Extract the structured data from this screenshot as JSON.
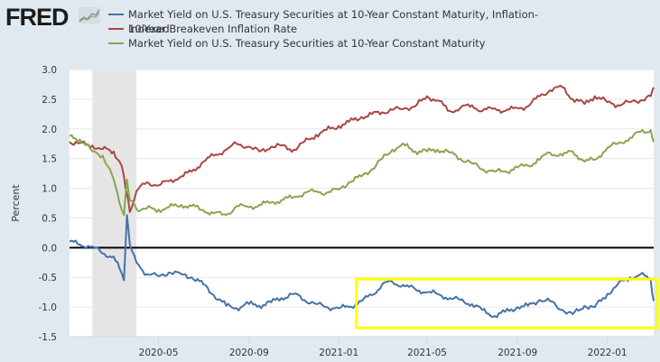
{
  "header": {
    "logo_text": "FRED",
    "logo_icon": "line-chart-icon"
  },
  "legend": [
    {
      "label": "Market Yield on U.S. Treasury Securities at 10-Year Constant Maturity, Inflation-",
      "color": "#4572a7"
    },
    {
      "label": "10-Year Breakeven Inflation Rate",
      "overlap_text": "Indexed",
      "color": "#aa4643"
    },
    {
      "label": "Market Yield on U.S. Treasury Securities at 10-Year Constant Maturity",
      "color": "#89a54e"
    }
  ],
  "chart_data": {
    "type": "line",
    "title": "",
    "xlabel": "",
    "ylabel": "Percent",
    "ylim": [
      -1.5,
      3.0
    ],
    "yticks": [
      "3.0",
      "2.5",
      "2.0",
      "1.5",
      "1.0",
      "0.5",
      "0.0",
      "-0.5",
      "-1.0",
      "-1.5"
    ],
    "ytick_values": [
      3.0,
      2.5,
      2.0,
      1.5,
      1.0,
      0.5,
      0.0,
      -0.5,
      -1.0,
      -1.5
    ],
    "xlim": [
      "2020-01-01",
      "2022-03-05"
    ],
    "xticks": [
      "2020-05",
      "2020-09",
      "2021-01",
      "2021-05",
      "2021-09",
      "2022-01"
    ],
    "grid": true,
    "zero_line": true,
    "recession_shading": {
      "start": "2020-02-01",
      "end": "2020-04-01",
      "color": "#e5e5e5"
    },
    "highlight_box": {
      "start": "2021-01-25",
      "end": "2022-03-10",
      "ymin": -1.35,
      "ymax": -0.53,
      "color": "#ffff00"
    },
    "x": [
      "2020-01-01",
      "2020-01-15",
      "2020-02-01",
      "2020-02-15",
      "2020-03-01",
      "2020-03-09",
      "2020-03-15",
      "2020-03-19",
      "2020-03-23",
      "2020-04-01",
      "2020-04-15",
      "2020-05-01",
      "2020-05-15",
      "2020-06-01",
      "2020-06-15",
      "2020-07-01",
      "2020-07-15",
      "2020-08-01",
      "2020-08-15",
      "2020-09-01",
      "2020-09-15",
      "2020-10-01",
      "2020-10-15",
      "2020-11-01",
      "2020-11-15",
      "2020-12-01",
      "2020-12-15",
      "2021-01-01",
      "2021-01-15",
      "2021-02-01",
      "2021-02-15",
      "2021-03-01",
      "2021-03-15",
      "2021-04-01",
      "2021-04-15",
      "2021-05-01",
      "2021-05-15",
      "2021-06-01",
      "2021-06-15",
      "2021-07-01",
      "2021-07-15",
      "2021-08-01",
      "2021-08-15",
      "2021-09-01",
      "2021-09-15",
      "2021-10-01",
      "2021-10-15",
      "2021-11-01",
      "2021-11-15",
      "2021-12-01",
      "2021-12-15",
      "2022-01-01",
      "2022-01-15",
      "2022-02-01",
      "2022-02-15",
      "2022-03-01",
      "2022-03-05"
    ],
    "series": [
      {
        "name": "Market Yield on U.S. Treasury Securities at 10-Year Constant Maturity, Inflation-Indexed",
        "color": "#4572a7",
        "values": [
          0.1,
          0.05,
          0.02,
          -0.1,
          -0.15,
          -0.35,
          -0.55,
          0.55,
          0.05,
          -0.25,
          -0.45,
          -0.48,
          -0.42,
          -0.45,
          -0.5,
          -0.62,
          -0.8,
          -0.98,
          -1.02,
          -0.95,
          -0.98,
          -0.92,
          -0.85,
          -0.78,
          -0.88,
          -0.95,
          -1.0,
          -1.02,
          -1.0,
          -0.9,
          -0.8,
          -0.62,
          -0.58,
          -0.65,
          -0.7,
          -0.75,
          -0.78,
          -0.85,
          -0.88,
          -0.95,
          -1.05,
          -1.15,
          -1.08,
          -1.0,
          -0.98,
          -0.88,
          -0.9,
          -1.05,
          -1.12,
          -0.98,
          -1.0,
          -0.78,
          -0.62,
          -0.5,
          -0.45,
          -0.55,
          -0.9
        ]
      },
      {
        "name": "10-Year Breakeven Inflation Rate",
        "color": "#aa4643",
        "values": [
          1.78,
          1.76,
          1.72,
          1.66,
          1.62,
          1.45,
          1.2,
          0.9,
          0.6,
          0.95,
          1.1,
          1.05,
          1.12,
          1.2,
          1.28,
          1.45,
          1.55,
          1.65,
          1.75,
          1.7,
          1.62,
          1.7,
          1.72,
          1.65,
          1.78,
          1.9,
          1.98,
          2.05,
          2.12,
          2.2,
          2.25,
          2.28,
          2.32,
          2.35,
          2.38,
          2.55,
          2.48,
          2.3,
          2.35,
          2.4,
          2.3,
          2.35,
          2.3,
          2.35,
          2.38,
          2.55,
          2.65,
          2.7,
          2.5,
          2.42,
          2.55,
          2.45,
          2.4,
          2.45,
          2.48,
          2.55,
          2.7
        ]
      },
      {
        "name": "Market Yield on U.S. Treasury Securities at 10-Year Constant Maturity",
        "color": "#89a54e",
        "values": [
          1.88,
          1.82,
          1.62,
          1.55,
          1.15,
          0.75,
          0.55,
          1.15,
          0.8,
          0.65,
          0.66,
          0.64,
          0.68,
          0.72,
          0.7,
          0.63,
          0.58,
          0.55,
          0.7,
          0.68,
          0.72,
          0.76,
          0.8,
          0.85,
          0.92,
          0.95,
          0.92,
          0.98,
          1.1,
          1.2,
          1.32,
          1.5,
          1.65,
          1.72,
          1.62,
          1.62,
          1.65,
          1.6,
          1.5,
          1.42,
          1.32,
          1.28,
          1.28,
          1.35,
          1.38,
          1.48,
          1.6,
          1.55,
          1.62,
          1.45,
          1.48,
          1.68,
          1.75,
          1.85,
          1.95,
          1.98,
          1.78
        ]
      }
    ]
  }
}
